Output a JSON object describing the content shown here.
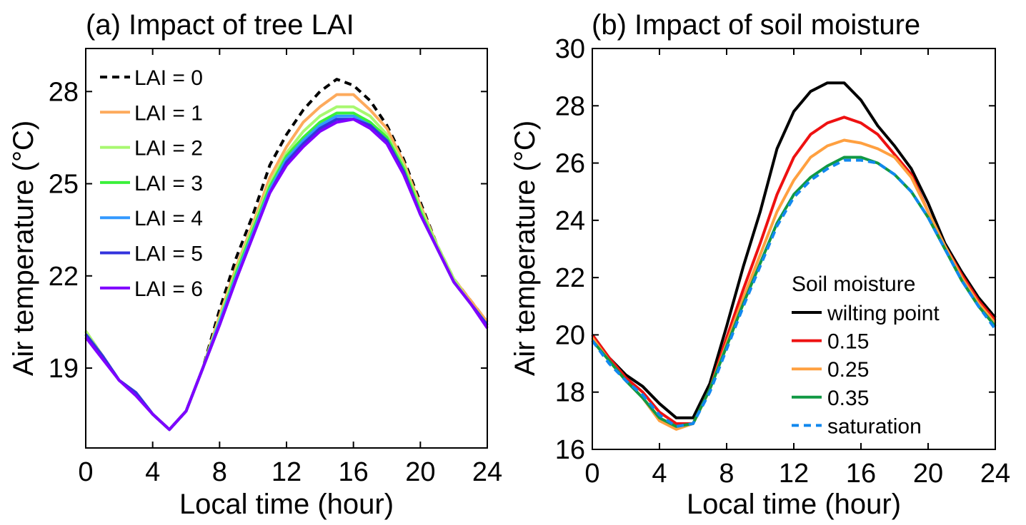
{
  "chart_data": [
    {
      "type": "line",
      "title": "(a) Impact of tree LAI",
      "xlabel": "Local time (hour)",
      "ylabel": "Air temperature (°C)",
      "xlim": [
        0,
        24
      ],
      "ylim": [
        16.4,
        29.4
      ],
      "xticks": [
        0,
        4,
        8,
        12,
        16,
        20,
        24
      ],
      "yticks": [
        19,
        22,
        25,
        28
      ],
      "legend_title": "",
      "legend_position": "top-left",
      "x": [
        0,
        1,
        2,
        3,
        4,
        5,
        6,
        7,
        8,
        9,
        10,
        11,
        12,
        13,
        14,
        15,
        16,
        17,
        18,
        19,
        20,
        21,
        22,
        23,
        24
      ],
      "series": [
        {
          "name": "LAI = 0",
          "color": "#000000",
          "dash": true,
          "values": [
            20.2,
            19.4,
            18.6,
            18.2,
            17.5,
            17.0,
            17.6,
            19.0,
            20.9,
            22.6,
            24.0,
            25.6,
            26.6,
            27.4,
            28.0,
            28.4,
            28.2,
            27.7,
            26.9,
            25.8,
            24.4,
            23.0,
            21.9,
            21.2,
            20.5
          ]
        },
        {
          "name": "LAI = 1",
          "color": "#FDAA5C",
          "dash": false,
          "values": [
            20.2,
            19.4,
            18.6,
            18.2,
            17.5,
            17.0,
            17.6,
            19.0,
            20.7,
            22.3,
            23.7,
            25.2,
            26.2,
            27.0,
            27.5,
            27.9,
            27.9,
            27.4,
            26.8,
            25.7,
            24.3,
            23.0,
            21.9,
            21.2,
            20.5
          ]
        },
        {
          "name": "LAI = 2",
          "color": "#A8F870",
          "dash": false,
          "values": [
            20.2,
            19.4,
            18.6,
            18.2,
            17.5,
            17.0,
            17.6,
            19.0,
            20.6,
            22.2,
            23.6,
            25.0,
            26.0,
            26.7,
            27.2,
            27.5,
            27.5,
            27.2,
            26.6,
            25.6,
            24.2,
            23.0,
            21.9,
            21.1,
            20.4
          ]
        },
        {
          "name": "LAI = 3",
          "color": "#3AF03A",
          "dash": false,
          "values": [
            20.1,
            19.4,
            18.6,
            18.2,
            17.5,
            17.0,
            17.6,
            19.0,
            20.5,
            22.1,
            23.5,
            24.9,
            25.9,
            26.5,
            27.0,
            27.3,
            27.3,
            27.0,
            26.5,
            25.5,
            24.1,
            22.9,
            21.8,
            21.1,
            20.4
          ]
        },
        {
          "name": "LAI = 4",
          "color": "#3399FF",
          "dash": false,
          "values": [
            20.1,
            19.4,
            18.6,
            18.2,
            17.5,
            17.0,
            17.6,
            19.0,
            20.5,
            22.0,
            23.4,
            24.8,
            25.8,
            26.4,
            26.9,
            27.2,
            27.2,
            26.9,
            26.4,
            25.4,
            24.0,
            22.9,
            21.8,
            21.1,
            20.4
          ]
        },
        {
          "name": "LAI = 5",
          "color": "#3333DD",
          "dash": false,
          "values": [
            20.1,
            19.4,
            18.6,
            18.2,
            17.5,
            17.0,
            17.6,
            19.0,
            20.4,
            21.9,
            23.3,
            24.7,
            25.7,
            26.3,
            26.8,
            27.1,
            27.1,
            26.9,
            26.4,
            25.4,
            24.0,
            22.9,
            21.8,
            21.1,
            20.4
          ]
        },
        {
          "name": "LAI = 6",
          "color": "#7F00FF",
          "dash": false,
          "values": [
            20.0,
            19.3,
            18.6,
            18.1,
            17.5,
            17.0,
            17.6,
            19.0,
            20.4,
            21.9,
            23.3,
            24.7,
            25.6,
            26.2,
            26.7,
            27.0,
            27.1,
            26.8,
            26.3,
            25.3,
            24.0,
            22.9,
            21.8,
            21.1,
            20.3
          ]
        }
      ]
    },
    {
      "type": "line",
      "title": "(b) Impact of soil moisture",
      "xlabel": "Local time (hour)",
      "ylabel": "Air temperature (°C)",
      "xlim": [
        0,
        24
      ],
      "ylim": [
        16,
        30
      ],
      "xticks": [
        0,
        4,
        8,
        12,
        16,
        20,
        24
      ],
      "yticks": [
        16,
        18,
        20,
        22,
        24,
        26,
        28,
        30
      ],
      "legend_title": "Soil moisture",
      "legend_position": "bottom-right",
      "x": [
        0,
        1,
        2,
        3,
        4,
        5,
        6,
        7,
        8,
        9,
        10,
        11,
        12,
        13,
        14,
        15,
        16,
        17,
        18,
        19,
        20,
        21,
        22,
        23,
        24
      ],
      "series": [
        {
          "name": "wilting point",
          "color": "#000000",
          "dash": false,
          "values": [
            20.0,
            19.2,
            18.6,
            18.2,
            17.6,
            17.1,
            17.1,
            18.3,
            20.3,
            22.4,
            24.3,
            26.5,
            27.8,
            28.5,
            28.8,
            28.8,
            28.2,
            27.3,
            26.6,
            25.8,
            24.6,
            23.2,
            22.2,
            21.3,
            20.6
          ]
        },
        {
          "name": "0.15",
          "color": "#EE1111",
          "dash": false,
          "values": [
            20.0,
            19.2,
            18.5,
            18.0,
            17.3,
            16.9,
            16.9,
            18.1,
            19.9,
            21.6,
            23.2,
            24.9,
            26.2,
            27.0,
            27.4,
            27.6,
            27.4,
            27.0,
            26.3,
            25.6,
            24.3,
            23.1,
            22.1,
            21.2,
            20.5
          ]
        },
        {
          "name": "0.25",
          "color": "#FFA040",
          "dash": false,
          "values": [
            19.9,
            19.1,
            18.4,
            17.8,
            17.0,
            16.7,
            16.9,
            18.1,
            19.7,
            21.3,
            22.8,
            24.3,
            25.4,
            26.2,
            26.6,
            26.8,
            26.7,
            26.5,
            26.2,
            25.5,
            24.3,
            23.1,
            22.0,
            21.1,
            20.4
          ]
        },
        {
          "name": "0.35",
          "color": "#119944",
          "dash": false,
          "values": [
            19.8,
            19.1,
            18.4,
            17.8,
            17.1,
            16.8,
            16.9,
            18.1,
            19.6,
            21.1,
            22.5,
            23.9,
            24.9,
            25.5,
            25.9,
            26.2,
            26.2,
            26.0,
            25.6,
            25.0,
            24.1,
            23.0,
            21.9,
            21.0,
            20.3
          ]
        },
        {
          "name": "saturation",
          "color": "#1188EE",
          "dash": true,
          "values": [
            19.8,
            19.0,
            18.4,
            17.9,
            17.2,
            16.8,
            16.9,
            18.0,
            19.5,
            21.0,
            22.4,
            23.8,
            24.8,
            25.4,
            25.8,
            26.1,
            26.1,
            26.0,
            25.6,
            25.0,
            24.1,
            23.0,
            21.9,
            21.0,
            20.2
          ]
        }
      ]
    }
  ]
}
